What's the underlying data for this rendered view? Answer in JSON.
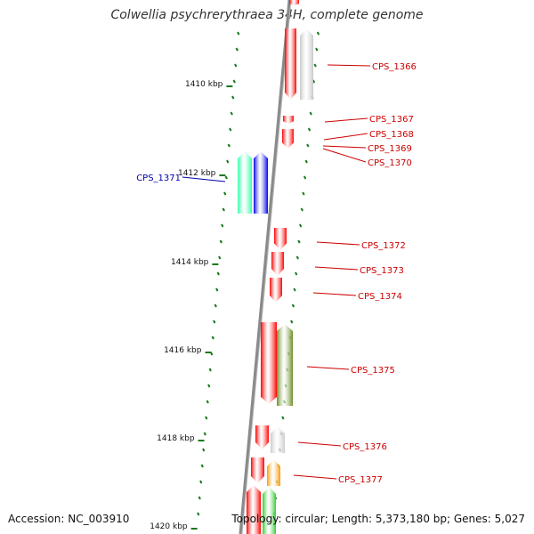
{
  "title": "Colwellia psychrerythraea 34H, complete genome",
  "accession": "Accession: NC_003910",
  "topology": "Topology: circular; Length: 5,373,180 bp; Genes: 5,027",
  "colors": {
    "backbone": "#8a8a8a",
    "tick": "#1a7a1a",
    "label_red": "#cc0000",
    "label_blue": "#0000aa"
  },
  "kbp_labels": [
    "1410 kbp",
    "1412 kbp",
    "1414 kbp",
    "1416 kbp",
    "1418 kbp",
    "1420 kbp"
  ],
  "genes": [
    {
      "name": "CPS_1366",
      "color": "#d0d0d0",
      "label_color": "#cc0000"
    },
    {
      "name": "CPS_1367",
      "color": "#ff0000",
      "label_color": "#cc0000"
    },
    {
      "name": "CPS_1368",
      "color": "#ff0000",
      "label_color": "#cc0000"
    },
    {
      "name": "CPS_1369",
      "color": "#ff0000",
      "label_color": "#cc0000"
    },
    {
      "name": "CPS_1370",
      "color": "#ff0000",
      "label_color": "#cc0000"
    },
    {
      "name": "CPS_1371",
      "color": "#0000ee",
      "label_color": "#0000aa"
    },
    {
      "name": "CPS_1372",
      "color": "#ff0000",
      "label_color": "#cc0000"
    },
    {
      "name": "CPS_1373",
      "color": "#ff0000",
      "label_color": "#cc0000"
    },
    {
      "name": "CPS_1374",
      "color": "#ff0000",
      "label_color": "#cc0000"
    },
    {
      "name": "CPS_1375",
      "color": "#6b8e23",
      "label_color": "#cc0000"
    },
    {
      "name": "CPS_1376",
      "color": "#cccccc",
      "label_color": "#cc0000"
    },
    {
      "name": "CPS_1377",
      "color": "#ff9900",
      "label_color": "#cc0000"
    }
  ]
}
